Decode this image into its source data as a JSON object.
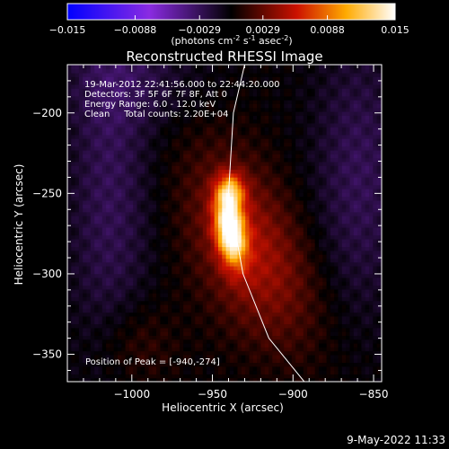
{
  "colorbar": {
    "ticks": [
      "-0.015",
      "-0.0088",
      "-0.0029",
      "0.0029",
      "0.0088",
      "0.015"
    ],
    "tick_values": [
      -0.015,
      -0.0088,
      -0.0029,
      0.0029,
      0.0088,
      0.015
    ],
    "range": [
      -0.015,
      0.015
    ],
    "units": "(photons cm",
    "units_exp1": "-2",
    "units_mid": " s",
    "units_exp2": "-1",
    "units_end": " asec",
    "units_exp3": "-2",
    "units_close": ")"
  },
  "chart_data": {
    "type": "heatmap",
    "title": "Reconstructed RHESSI Image",
    "xlabel": "Heliocentric X (arcsec)",
    "ylabel": "Heliocentric Y (arcsec)",
    "xlim": [
      -1040,
      -845
    ],
    "ylim": [
      -367,
      -170
    ],
    "xticks": [
      -1000,
      -950,
      -900,
      -850
    ],
    "yticks": [
      -350,
      -300,
      -250,
      -200
    ],
    "xtick_labels": [
      "−1000",
      "−950",
      "−900",
      "−850"
    ],
    "ytick_labels": [
      "−350",
      "−300",
      "−250",
      "−200"
    ],
    "colormap": "blue-purple-black-red-yellow-white",
    "info_lines": [
      "19-Mar-2012 22:41:56.000 to 22:44:20.000",
      "Detectors: 3F 5F 6F 7F 8F, Att 0",
      "Energy Range: 6.0 - 12.0 keV",
      "Clean     Total counts: 2.20E+04"
    ],
    "peak_label": "Position of Peak = [-940,-274]",
    "peak": [
      -940,
      -274
    ],
    "limb_curve": [
      [
        -930,
        -170
      ],
      [
        -937,
        -200
      ],
      [
        -940,
        -250
      ],
      [
        -931,
        -300
      ],
      [
        -915,
        -340
      ],
      [
        -893,
        -367
      ]
    ]
  },
  "footer": {
    "timestamp": "9-May-2022 11:33"
  }
}
